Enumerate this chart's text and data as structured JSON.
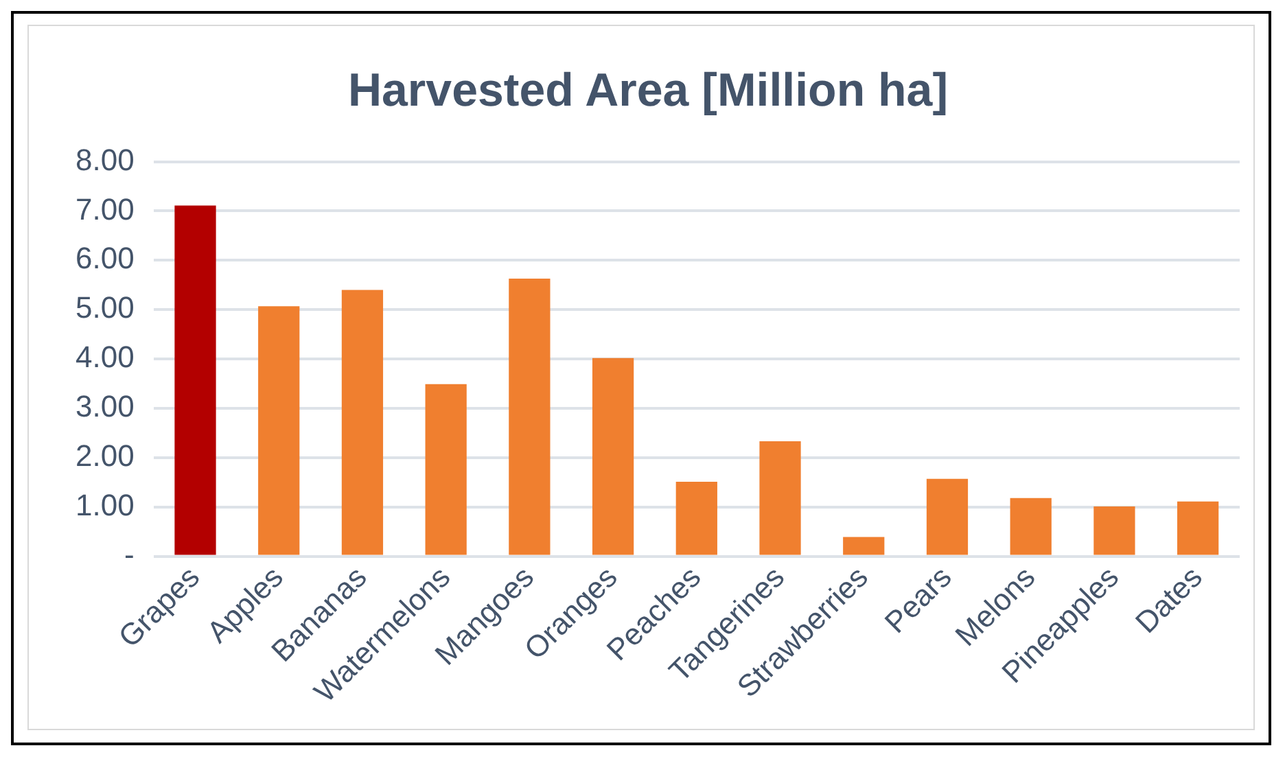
{
  "chart_data": {
    "type": "bar",
    "title": "Harvested Area [Million ha]",
    "categories": [
      "Grapes",
      "Apples",
      "Bananas",
      "Watermelons",
      "Mangoes",
      "Oranges",
      "Peaches",
      "Tangerines",
      "Strawberries",
      "Pears",
      "Melons",
      "Pineapples",
      "Dates"
    ],
    "values": [
      7.11,
      5.07,
      5.4,
      3.49,
      5.63,
      4.02,
      1.51,
      2.33,
      0.39,
      1.57,
      1.18,
      1.01,
      1.11
    ],
    "colors": [
      "#b30000",
      "#f07f2f",
      "#f07f2f",
      "#f07f2f",
      "#f07f2f",
      "#f07f2f",
      "#f07f2f",
      "#f07f2f",
      "#f07f2f",
      "#f07f2f",
      "#f07f2f",
      "#f07f2f",
      "#f07f2f"
    ],
    "ylim": [
      0,
      8
    ],
    "yticks": [
      {
        "value": 0,
        "label": "-"
      },
      {
        "value": 1,
        "label": "1.00"
      },
      {
        "value": 2,
        "label": "2.00"
      },
      {
        "value": 3,
        "label": "3.00"
      },
      {
        "value": 4,
        "label": "4.00"
      },
      {
        "value": 5,
        "label": "5.00"
      },
      {
        "value": 6,
        "label": "6.00"
      },
      {
        "value": 7,
        "label": "7.00"
      },
      {
        "value": 8,
        "label": "8.00"
      }
    ],
    "grid": "y",
    "legend": false
  }
}
